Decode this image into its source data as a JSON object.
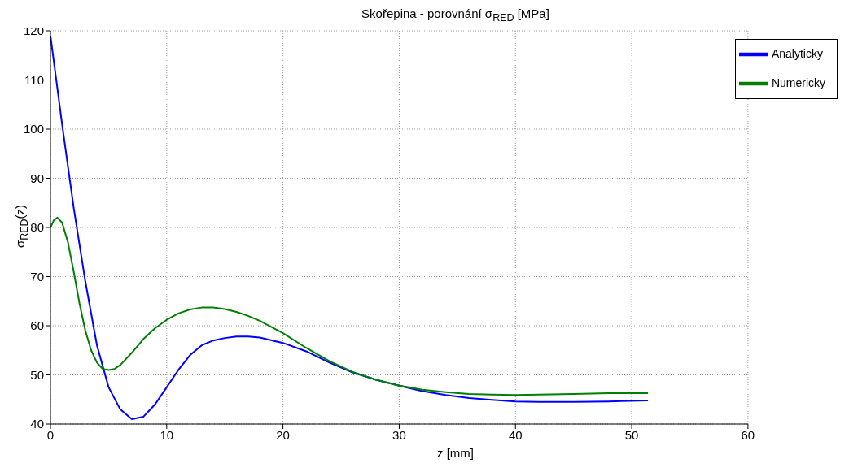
{
  "chart_data": {
    "type": "line",
    "title": "Skořepina - porovnání σ$_{RED}$ [MPa]",
    "xlabel": "z [mm]",
    "ylabel": "σ$_{RED}$(z)",
    "xlim": [
      0,
      60
    ],
    "xticks": [
      0,
      10,
      20,
      30,
      40,
      50,
      60
    ],
    "ylim": [
      40,
      120
    ],
    "yticks": [
      40,
      50,
      60,
      70,
      80,
      90,
      100,
      110,
      120
    ],
    "grid": true,
    "legend": "top right",
    "marker": "none",
    "line_style": "solid",
    "series": [
      {
        "name": "Analyticky",
        "color": "#0000ff",
        "x": [
          0,
          1,
          2,
          3,
          4,
          5,
          6,
          7,
          8,
          9,
          10,
          11,
          12,
          13,
          14,
          15,
          16,
          17,
          18,
          20,
          22,
          24,
          26,
          28,
          30,
          32,
          34,
          36,
          38,
          40,
          42,
          45,
          48,
          51.4
        ],
        "values": [
          119,
          101,
          84,
          69,
          56,
          47.5,
          43,
          41,
          41.5,
          44,
          47.5,
          51,
          54,
          56,
          57,
          57.5,
          57.8,
          57.8,
          57.6,
          56.5,
          54.8,
          52.5,
          50.5,
          49,
          47.8,
          46.7,
          45.9,
          45.3,
          44.9,
          44.6,
          44.5,
          44.5,
          44.6,
          44.8
        ]
      },
      {
        "name": "Numericky",
        "color": "#008000",
        "x": [
          0,
          0.3,
          0.6,
          1,
          1.5,
          2,
          2.5,
          3,
          3.5,
          4,
          4.5,
          5,
          5.5,
          6,
          7,
          8,
          9,
          10,
          11,
          12,
          13,
          14,
          15,
          16,
          17,
          18,
          20,
          22,
          24,
          26,
          28,
          30,
          32,
          34,
          36,
          38,
          40,
          42,
          45,
          48,
          51.4
        ],
        "values": [
          80,
          81.5,
          82,
          81,
          77,
          71,
          64.5,
          59,
          55,
          52.5,
          51.2,
          51,
          51.2,
          52,
          54.5,
          57.3,
          59.5,
          61.2,
          62.5,
          63.3,
          63.7,
          63.7,
          63.4,
          62.8,
          62,
          61,
          58.5,
          55.5,
          52.8,
          50.6,
          49,
          47.8,
          47,
          46.5,
          46.1,
          46,
          45.9,
          46,
          46.1,
          46.3,
          46.3
        ]
      }
    ]
  }
}
